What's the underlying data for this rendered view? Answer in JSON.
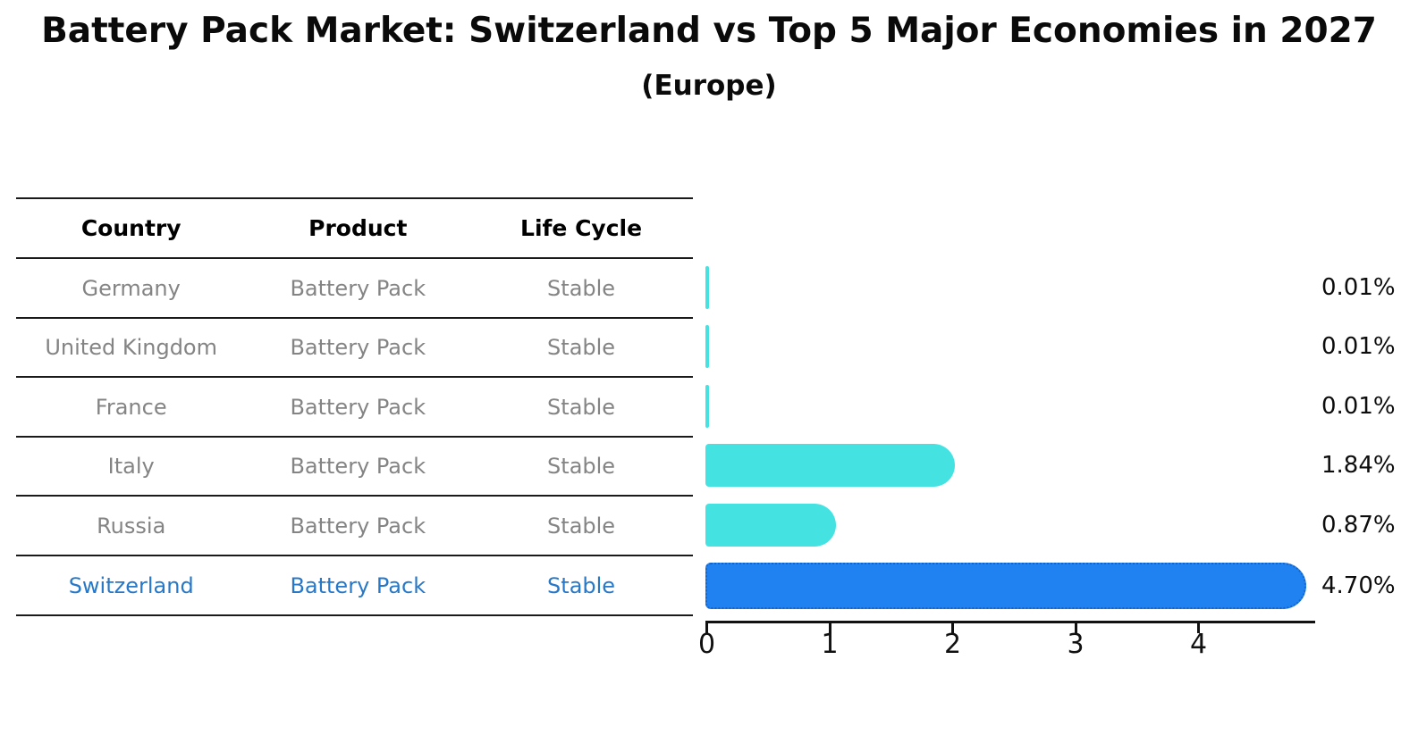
{
  "title": "Battery Pack Market: Switzerland vs Top 5 Major Economies in 2027",
  "subtitle": "(Europe)",
  "table": {
    "headers": [
      "Country",
      "Product",
      "Life Cycle"
    ],
    "rows": [
      {
        "country": "Germany",
        "product": "Battery Pack",
        "life_cycle": "Stable",
        "highlight": false
      },
      {
        "country": "United Kingdom",
        "product": "Battery Pack",
        "life_cycle": "Stable",
        "highlight": false
      },
      {
        "country": "France",
        "product": "Battery Pack",
        "life_cycle": "Stable",
        "highlight": false
      },
      {
        "country": "Italy",
        "product": "Battery Pack",
        "life_cycle": "Stable",
        "highlight": false
      },
      {
        "country": "Russia",
        "product": "Battery Pack",
        "life_cycle": "Stable",
        "highlight": false
      },
      {
        "country": "Switzerland",
        "product": "Battery Pack",
        "life_cycle": "Stable",
        "highlight": true
      }
    ]
  },
  "chart_data": {
    "type": "bar",
    "orientation": "horizontal",
    "title": "Battery Pack Market: Switzerland vs Top 5 Major Economies in 2027",
    "subtitle": "(Europe)",
    "categories": [
      "Germany",
      "United Kingdom",
      "France",
      "Italy",
      "Russia",
      "Switzerland"
    ],
    "values": [
      0.01,
      0.01,
      0.01,
      1.84,
      0.87,
      4.7
    ],
    "labels": [
      "0.01%",
      "0.01%",
      "0.01%",
      "1.84%",
      "0.87%",
      "4.70%"
    ],
    "x_ticks": [
      "0",
      "1",
      "2",
      "3",
      "4"
    ],
    "xlim": [
      0,
      4.95
    ],
    "grid": false,
    "legend": false,
    "highlight_index": 5,
    "bar_color": "#45E2E2",
    "highlight_color": "#2081F0",
    "highlight_border_color": "#1365CC"
  },
  "colors": {
    "highlight_text": "#2878C8",
    "table_text": "#848484",
    "axis": "#111111"
  }
}
